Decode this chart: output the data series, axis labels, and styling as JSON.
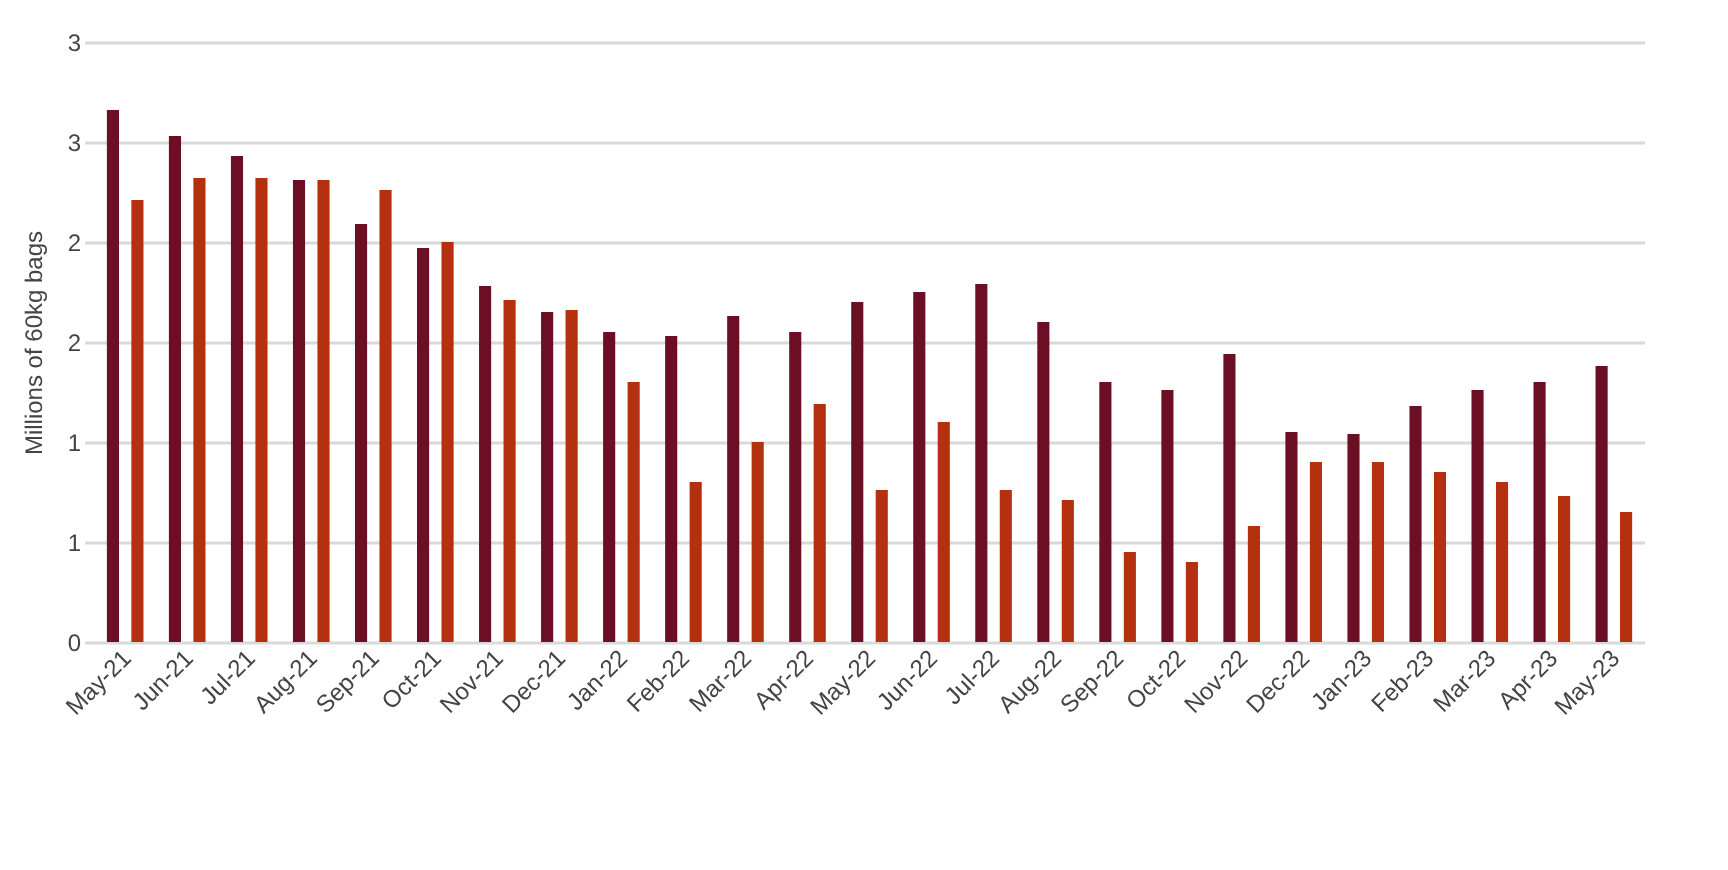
{
  "chart_data": {
    "type": "bar",
    "ylabel": "Millions of 60kg bags",
    "categories": [
      "May-21",
      "Jun-21",
      "Jul-21",
      "Aug-21",
      "Sep-21",
      "Oct-21",
      "Nov-21",
      "Dec-21",
      "Jan-22",
      "Feb-22",
      "Mar-22",
      "Apr-22",
      "May-22",
      "Jun-22",
      "Jul-22",
      "Aug-22",
      "Sep-22",
      "Oct-22",
      "Nov-22",
      "Dec-22",
      "Jan-23",
      "Feb-23",
      "Mar-23",
      "Apr-23",
      "May-23"
    ],
    "series": [
      {
        "color": "#6d0f24",
        "values": [
          2.66,
          2.53,
          2.43,
          2.31,
          2.09,
          1.97,
          1.78,
          1.65,
          1.55,
          1.53,
          1.63,
          1.55,
          1.7,
          1.75,
          1.79,
          1.6,
          1.3,
          1.26,
          1.44,
          1.05,
          1.04,
          1.18,
          1.26,
          1.3,
          1.38
        ]
      },
      {
        "color": "#b5300f",
        "values": [
          2.21,
          2.32,
          2.32,
          2.31,
          2.26,
          2.0,
          1.71,
          1.66,
          1.3,
          0.8,
          1.0,
          1.19,
          0.76,
          1.1,
          0.76,
          0.71,
          0.45,
          0.4,
          0.58,
          0.9,
          0.9,
          0.85,
          0.8,
          0.73,
          0.65
        ]
      }
    ],
    "ylim": [
      0,
      3
    ],
    "yticks": [
      0,
      {
        "value": 0.5,
        "label": "1"
      },
      1,
      {
        "value": 1.5,
        "label": "2"
      },
      2,
      {
        "value": 2.5,
        "label": "3"
      },
      3
    ],
    "grid": "y",
    "legend": false
  }
}
